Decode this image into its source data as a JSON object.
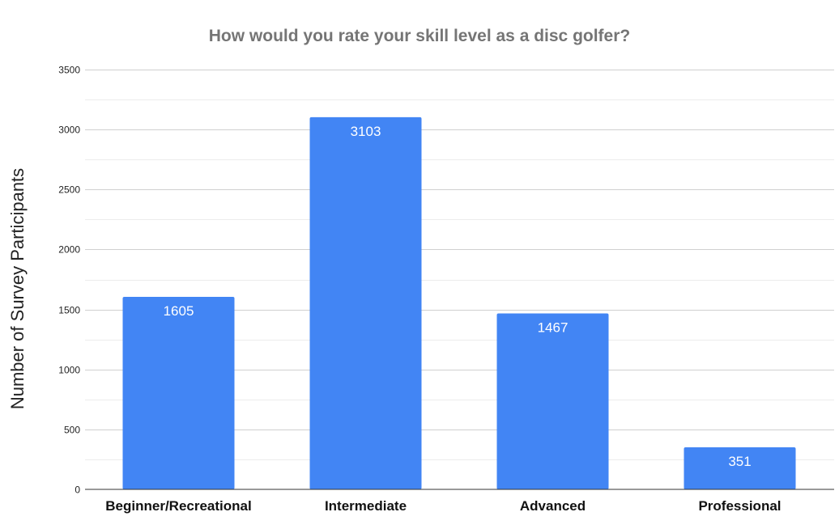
{
  "chart_data": {
    "type": "bar",
    "title": "How would you rate your skill level as a disc golfer?",
    "xlabel": "",
    "ylabel": "Number of Survey Participants",
    "categories": [
      "Beginner/Recreational",
      "Intermediate",
      "Advanced",
      "Professional"
    ],
    "values": [
      1605,
      3103,
      1467,
      351
    ],
    "data_labels": [
      "1605",
      "3103",
      "1467",
      "351"
    ],
    "ylim": [
      0,
      3500
    ],
    "yticks": [
      0,
      500,
      1000,
      1500,
      2000,
      2500,
      3000,
      3500
    ],
    "ytick_labels": [
      "0",
      "500",
      "1000",
      "1500",
      "2000",
      "2500",
      "3000",
      "3500"
    ],
    "grid": true,
    "legend": "none",
    "bar_color": "#4285f4"
  }
}
